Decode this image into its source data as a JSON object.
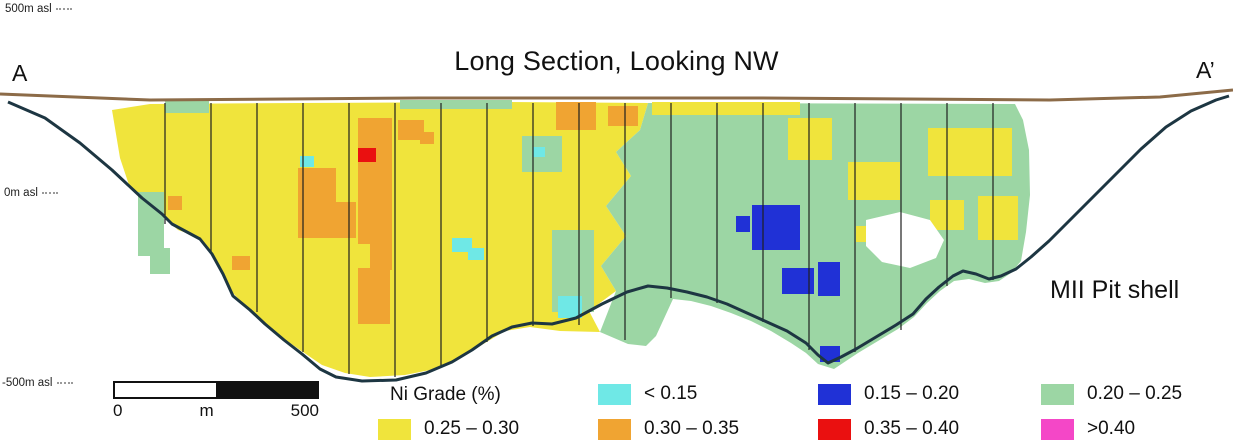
{
  "title": "Long Section, Looking NW",
  "endpoints": {
    "left": "A",
    "right": "A’"
  },
  "axis_labels": {
    "top": "500m asl",
    "middle": "0m asl",
    "bottom": "-500m asl"
  },
  "pit_label": "MII Pit shell",
  "scale_bar": {
    "start_label": "0",
    "unit_label": "m",
    "end_label": "500"
  },
  "legend": {
    "title": "Ni Grade (%)",
    "items": [
      {
        "label": "< 0.15",
        "color": "#6fe8e6"
      },
      {
        "label": "0.15 – 0.20",
        "color": "#2031d6"
      },
      {
        "label": "0.20 – 0.25",
        "color": "#9cd6a4"
      },
      {
        "label": "0.25 – 0.30",
        "color": "#f0e43c"
      },
      {
        "label": "0.30 – 0.35",
        "color": "#f0a432"
      },
      {
        "label": "0.35 – 0.40",
        "color": "#ea1010"
      },
      {
        "label": ">0.40",
        "color": "#f447c7"
      }
    ]
  },
  "colors": {
    "yellow": "#f0e43c",
    "orange": "#f0a432",
    "red": "#ea1010",
    "cyan": "#6fe8e6",
    "blue": "#2031d6",
    "green": "#9cd6a4",
    "magenta": "#f447c7",
    "white": "#ffffff",
    "surface": "#8c6b48",
    "pit": "#1d3642",
    "line": "#1f1f1f"
  },
  "section": {
    "surface": [
      [
        0,
        94
      ],
      [
        150,
        100
      ],
      [
        420,
        98
      ],
      [
        760,
        98
      ],
      [
        1050,
        100
      ],
      [
        1160,
        97
      ],
      [
        1233,
        90
      ]
    ],
    "pit_shell": [
      [
        8,
        102
      ],
      [
        45,
        118
      ],
      [
        80,
        143
      ],
      [
        112,
        170
      ],
      [
        142,
        198
      ],
      [
        162,
        214
      ],
      [
        172,
        224
      ],
      [
        200,
        239
      ],
      [
        212,
        254
      ],
      [
        223,
        274
      ],
      [
        233,
        296
      ],
      [
        250,
        310
      ],
      [
        265,
        324
      ],
      [
        284,
        340
      ],
      [
        302,
        354
      ],
      [
        320,
        369
      ],
      [
        336,
        377
      ],
      [
        362,
        381
      ],
      [
        396,
        380
      ],
      [
        426,
        373
      ],
      [
        452,
        362
      ],
      [
        472,
        350
      ],
      [
        492,
        336
      ],
      [
        512,
        327
      ],
      [
        532,
        323
      ],
      [
        552,
        324
      ],
      [
        576,
        318
      ],
      [
        602,
        304
      ],
      [
        627,
        292
      ],
      [
        648,
        286
      ],
      [
        667,
        288
      ],
      [
        687,
        292
      ],
      [
        707,
        297
      ],
      [
        727,
        304
      ],
      [
        747,
        313
      ],
      [
        767,
        322
      ],
      [
        787,
        331
      ],
      [
        806,
        343
      ],
      [
        818,
        355
      ],
      [
        828,
        363
      ],
      [
        841,
        357
      ],
      [
        856,
        349
      ],
      [
        876,
        337
      ],
      [
        896,
        325
      ],
      [
        913,
        314
      ],
      [
        926,
        299
      ],
      [
        939,
        287
      ],
      [
        953,
        276
      ],
      [
        963,
        271
      ],
      [
        976,
        274
      ],
      [
        989,
        279
      ],
      [
        1001,
        276
      ],
      [
        1016,
        269
      ],
      [
        1031,
        257
      ],
      [
        1049,
        241
      ],
      [
        1069,
        221
      ],
      [
        1091,
        199
      ],
      [
        1116,
        174
      ],
      [
        1141,
        149
      ],
      [
        1166,
        127
      ],
      [
        1191,
        111
      ],
      [
        1216,
        100
      ],
      [
        1229,
        96
      ]
    ],
    "regions": {
      "yellow": [
        [
          112,
          110
        ],
        [
          150,
          104
        ],
        [
          300,
          103
        ],
        [
          500,
          102
        ],
        [
          648,
          103
        ],
        [
          640,
          130
        ],
        [
          616,
          152
        ],
        [
          631,
          176
        ],
        [
          606,
          206
        ],
        [
          626,
          236
        ],
        [
          601,
          266
        ],
        [
          616,
          291
        ],
        [
          589,
          311
        ],
        [
          600,
          332
        ],
        [
          560,
          331
        ],
        [
          530,
          327
        ],
        [
          505,
          331
        ],
        [
          485,
          343
        ],
        [
          460,
          358
        ],
        [
          435,
          369
        ],
        [
          405,
          375
        ],
        [
          370,
          377
        ],
        [
          345,
          373
        ],
        [
          322,
          365
        ],
        [
          300,
          350
        ],
        [
          280,
          336
        ],
        [
          260,
          320
        ],
        [
          245,
          306
        ],
        [
          232,
          292
        ],
        [
          222,
          270
        ],
        [
          210,
          250
        ],
        [
          198,
          237
        ],
        [
          178,
          230
        ],
        [
          160,
          214
        ],
        [
          146,
          200
        ],
        [
          130,
          188
        ],
        [
          120,
          158
        ]
      ],
      "green": [
        [
          648,
          103
        ],
        [
          1015,
          104
        ],
        [
          1023,
          120
        ],
        [
          1029,
          150
        ],
        [
          1030,
          195
        ],
        [
          1026,
          232
        ],
        [
          1021,
          261
        ],
        [
          1011,
          273
        ],
        [
          999,
          281
        ],
        [
          985,
          283
        ],
        [
          969,
          279
        ],
        [
          954,
          281
        ],
        [
          940,
          291
        ],
        [
          927,
          303
        ],
        [
          914,
          317
        ],
        [
          898,
          329
        ],
        [
          878,
          341
        ],
        [
          858,
          353
        ],
        [
          846,
          361
        ],
        [
          834,
          369
        ],
        [
          818,
          364
        ],
        [
          806,
          353
        ],
        [
          791,
          343
        ],
        [
          771,
          331
        ],
        [
          751,
          321
        ],
        [
          731,
          313
        ],
        [
          711,
          306
        ],
        [
          691,
          301
        ],
        [
          673,
          299
        ],
        [
          656,
          336
        ],
        [
          646,
          346
        ],
        [
          628,
          344
        ],
        [
          600,
          332
        ],
        [
          616,
          291
        ],
        [
          601,
          266
        ],
        [
          626,
          236
        ],
        [
          606,
          206
        ],
        [
          631,
          176
        ],
        [
          616,
          152
        ],
        [
          640,
          130
        ]
      ]
    },
    "patches": [
      {
        "c": "green",
        "r": [
          138,
          192,
          26,
          64
        ]
      },
      {
        "c": "green",
        "r": [
          150,
          248,
          20,
          26
        ]
      },
      {
        "c": "green",
        "r": [
          165,
          100,
          44,
          13
        ]
      },
      {
        "c": "green",
        "r": [
          400,
          100,
          112,
          9
        ]
      },
      {
        "c": "green",
        "r": [
          522,
          136,
          40,
          36
        ]
      },
      {
        "c": "green",
        "r": [
          552,
          230,
          42,
          82
        ]
      },
      {
        "c": "yellow",
        "r": [
          652,
          102,
          148,
          13
        ]
      },
      {
        "c": "yellow",
        "r": [
          788,
          118,
          44,
          42
        ]
      },
      {
        "c": "yellow",
        "r": [
          848,
          162,
          52,
          38
        ]
      },
      {
        "c": "yellow",
        "r": [
          928,
          128,
          84,
          48
        ]
      },
      {
        "c": "yellow",
        "r": [
          930,
          200,
          34,
          30
        ]
      },
      {
        "c": "yellow",
        "r": [
          856,
          226,
          26,
          16
        ]
      },
      {
        "c": "yellow",
        "r": [
          978,
          196,
          40,
          44
        ]
      },
      {
        "c": "orange",
        "r": [
          298,
          168,
          38,
          70
        ]
      },
      {
        "c": "orange",
        "r": [
          312,
          202,
          44,
          36
        ]
      },
      {
        "c": "orange",
        "r": [
          358,
          118,
          34,
          126
        ]
      },
      {
        "c": "orange",
        "r": [
          370,
          240,
          22,
          30
        ]
      },
      {
        "c": "orange",
        "r": [
          398,
          120,
          26,
          20
        ]
      },
      {
        "c": "orange",
        "r": [
          420,
          132,
          14,
          12
        ]
      },
      {
        "c": "orange",
        "r": [
          556,
          102,
          40,
          28
        ]
      },
      {
        "c": "orange",
        "r": [
          608,
          106,
          30,
          20
        ]
      },
      {
        "c": "orange",
        "r": [
          358,
          268,
          32,
          56
        ]
      },
      {
        "c": "orange",
        "r": [
          232,
          256,
          18,
          14
        ]
      },
      {
        "c": "orange",
        "r": [
          168,
          196,
          14,
          14
        ]
      },
      {
        "c": "red",
        "r": [
          358,
          148,
          18,
          14
        ]
      },
      {
        "c": "cyan",
        "r": [
          300,
          156,
          14,
          11
        ]
      },
      {
        "c": "cyan",
        "r": [
          533,
          147,
          12,
          10
        ]
      },
      {
        "c": "cyan",
        "r": [
          452,
          238,
          20,
          14
        ]
      },
      {
        "c": "cyan",
        "r": [
          468,
          248,
          16,
          12
        ]
      },
      {
        "c": "cyan",
        "r": [
          558,
          296,
          24,
          22
        ]
      },
      {
        "c": "blue",
        "r": [
          752,
          205,
          48,
          45
        ]
      },
      {
        "c": "blue",
        "r": [
          736,
          216,
          14,
          16
        ]
      },
      {
        "c": "blue",
        "r": [
          782,
          268,
          32,
          26
        ]
      },
      {
        "c": "blue",
        "r": [
          818,
          262,
          22,
          34
        ]
      },
      {
        "c": "blue",
        "r": [
          820,
          346,
          20,
          16
        ]
      },
      {
        "c": "white",
        "p": [
          [
            866,
            220
          ],
          [
            900,
            212
          ],
          [
            930,
            220
          ],
          [
            944,
            240
          ],
          [
            936,
            258
          ],
          [
            910,
            268
          ],
          [
            882,
            262
          ],
          [
            866,
            246
          ]
        ]
      }
    ],
    "section_lines": [
      [
        165,
        103,
        224
      ],
      [
        211,
        103,
        252
      ],
      [
        257,
        103,
        312
      ],
      [
        303,
        103,
        352
      ],
      [
        349,
        103,
        374
      ],
      [
        395,
        103,
        377
      ],
      [
        441,
        103,
        368
      ],
      [
        487,
        103,
        342
      ],
      [
        533,
        103,
        326
      ],
      [
        579,
        103,
        325
      ],
      [
        625,
        103,
        340
      ],
      [
        671,
        103,
        298
      ],
      [
        717,
        103,
        303
      ],
      [
        763,
        103,
        322
      ],
      [
        809,
        103,
        350
      ],
      [
        855,
        103,
        352
      ],
      [
        901,
        103,
        330
      ],
      [
        947,
        103,
        286
      ],
      [
        993,
        103,
        280
      ]
    ]
  }
}
